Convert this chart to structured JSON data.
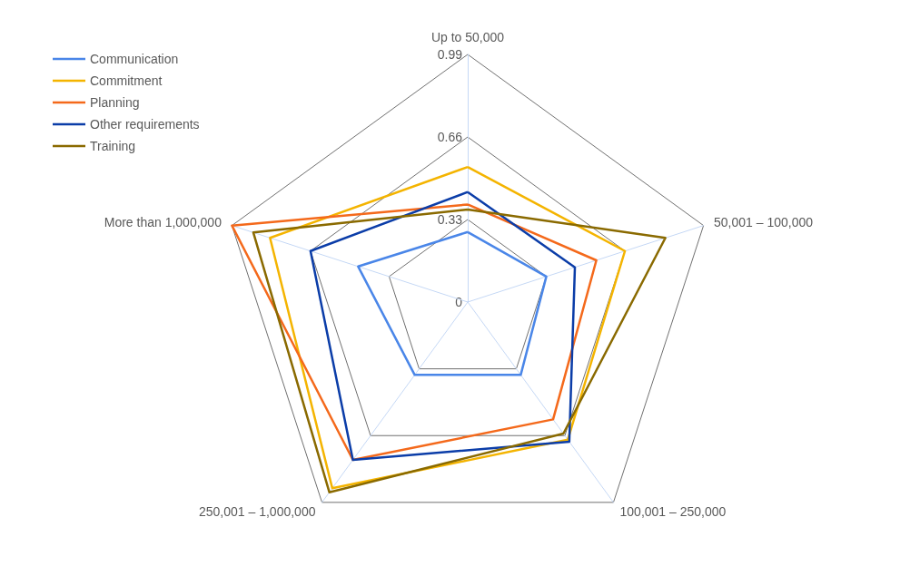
{
  "chart_data": {
    "type": "radar",
    "categories": [
      "Up to 50,000",
      "50,001 – 100,000",
      "100,001 – 250,000",
      "250,001 – 1,000,000",
      "More than 1,000,000"
    ],
    "series": [
      {
        "name": "Communication",
        "color": "#4a86e8",
        "values": [
          0.28,
          0.33,
          0.36,
          0.36,
          0.46
        ]
      },
      {
        "name": "Commitment",
        "color": "#f4b400",
        "values": [
          0.54,
          0.66,
          0.68,
          0.92,
          0.83
        ]
      },
      {
        "name": "Planning",
        "color": "#f4691b",
        "values": [
          0.39,
          0.54,
          0.58,
          0.78,
          0.99
        ]
      },
      {
        "name": "Other requirements",
        "color": "#0b3da8",
        "values": [
          0.44,
          0.45,
          0.69,
          0.78,
          0.66
        ]
      },
      {
        "name": "Training",
        "color": "#8a6a00",
        "values": [
          0.37,
          0.83,
          0.65,
          0.94,
          0.9
        ]
      }
    ],
    "ylim": [
      0,
      0.99
    ],
    "yticks": [
      0,
      0.33,
      0.66,
      0.99
    ],
    "grid": true,
    "legend": "top left",
    "marker": "none",
    "line_style": "solid"
  }
}
